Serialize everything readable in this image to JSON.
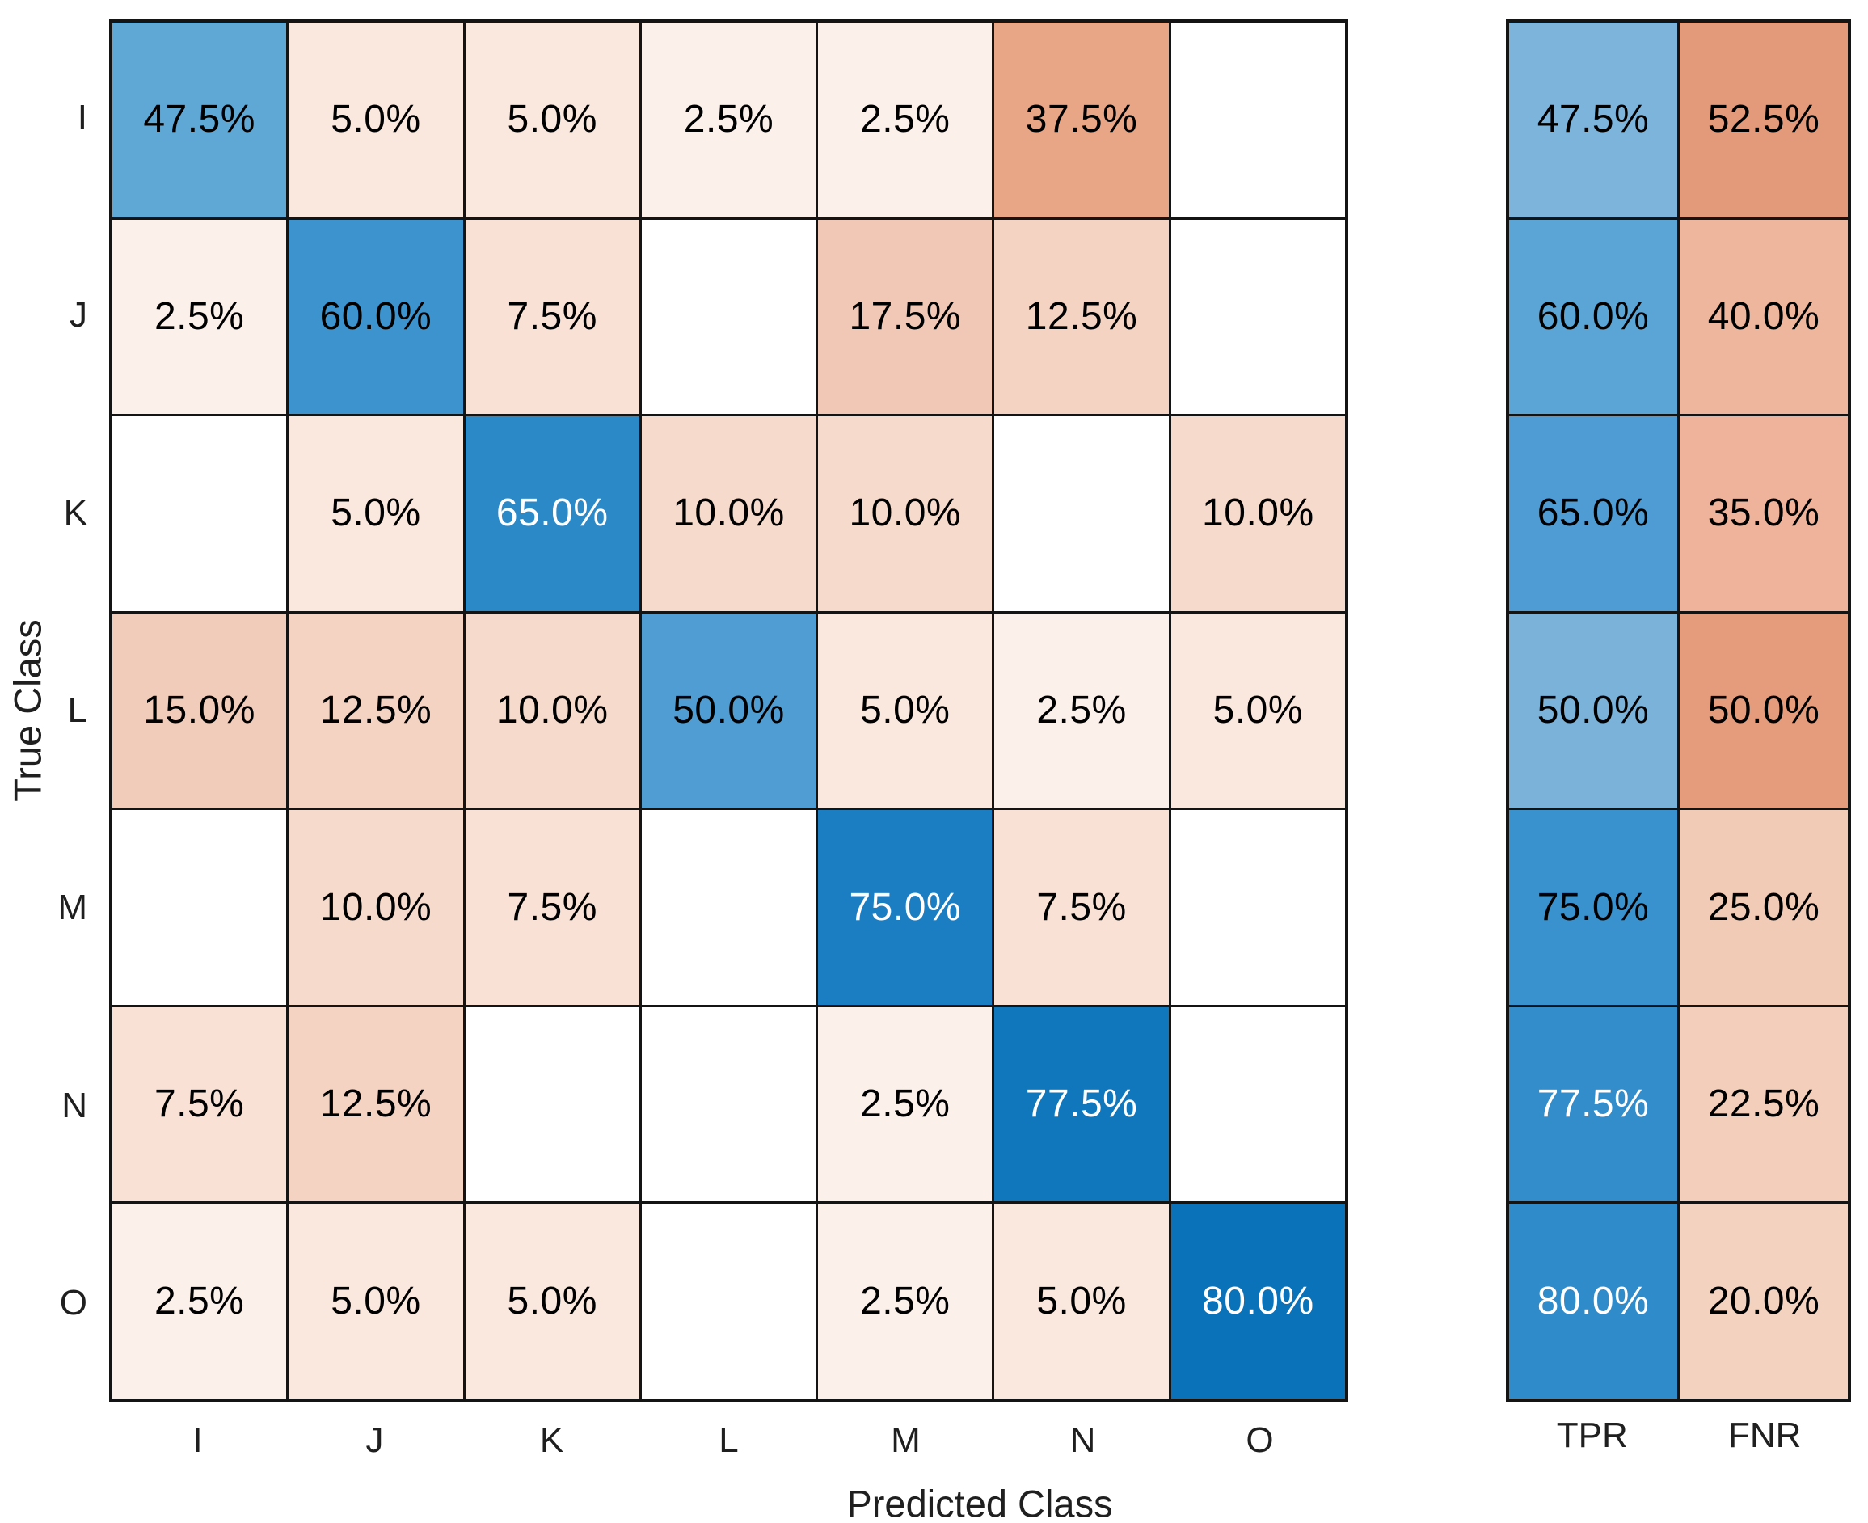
{
  "chart_data": {
    "type": "heatmap",
    "subtype": "confusion-matrix-row-normalized",
    "title": "",
    "xlabel": "Predicted Class",
    "ylabel": "True Class",
    "classes": [
      "I",
      "J",
      "K",
      "L",
      "M",
      "N",
      "O"
    ],
    "matrix_percent": [
      [
        47.5,
        5.0,
        5.0,
        2.5,
        2.5,
        37.5,
        null
      ],
      [
        2.5,
        60.0,
        7.5,
        null,
        17.5,
        12.5,
        null
      ],
      [
        null,
        5.0,
        65.0,
        10.0,
        10.0,
        null,
        10.0
      ],
      [
        15.0,
        12.5,
        10.0,
        50.0,
        5.0,
        2.5,
        5.0
      ],
      [
        null,
        10.0,
        7.5,
        null,
        75.0,
        7.5,
        null
      ],
      [
        7.5,
        12.5,
        null,
        null,
        2.5,
        77.5,
        null
      ],
      [
        2.5,
        5.0,
        5.0,
        null,
        2.5,
        5.0,
        80.0
      ]
    ],
    "row_summary": {
      "labels": [
        "TPR",
        "FNR"
      ],
      "tpr_percent": [
        47.5,
        60.0,
        65.0,
        50.0,
        75.0,
        77.5,
        80.0
      ],
      "fnr_percent": [
        52.5,
        40.0,
        35.0,
        50.0,
        25.0,
        22.5,
        20.0
      ]
    },
    "value_format": "one-decimal-percent",
    "grid_on": true,
    "legend_position": "none"
  },
  "colors": {
    "grid_line": "#141414",
    "axis_text": "#1f1f1f",
    "cell_text_black": "#000000",
    "cell_text_white": "#ffffff",
    "empty_cell": "#ffffff",
    "diagonal": {
      "47.5": "#5FA7D5",
      "50": "#4F9DD2",
      "60": "#3C93CE",
      "65": "#2C89C8",
      "75": "#1C7EC2",
      "77.5": "#1177BD",
      "80": "#0A72B9"
    },
    "off_diagonal": {
      "2.5": "#FCF0EA",
      "5": "#FAE8DE",
      "7.5": "#F9E1D5",
      "10": "#F6DACB",
      "12.5": "#F4D3C3",
      "15": "#F2CCBA",
      "17.5": "#F1C8B6",
      "37.5": "#E9A687"
    },
    "summary_tpr": {
      "47.5": "#7DB4DB",
      "50": "#7AB2DA",
      "60": "#5AA5D6",
      "65": "#4E9CD3",
      "75": "#3991CD",
      "77.5": "#338DCA",
      "80": "#2F8BC9"
    },
    "summary_fnr": {
      "52.5": "#E39A7B",
      "50": "#E59C7D",
      "40": "#EFB69E",
      "35": "#EEB39A",
      "25": "#F2CBB6",
      "22.5": "#F3CEBA",
      "20": "#F4D2C0"
    }
  },
  "text_rules": {
    "matrix_white_text_min": 65,
    "summary_white_text_min": 77.5
  }
}
